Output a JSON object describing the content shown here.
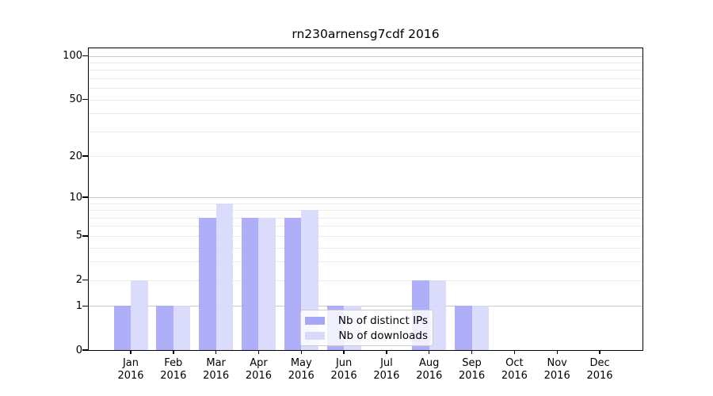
{
  "title": "rn230arnensg7cdf 2016",
  "chart_data": {
    "type": "bar",
    "title": "rn230arnensg7cdf 2016",
    "categories": [
      "Jan 2016",
      "Feb 2016",
      "Mar 2016",
      "Apr 2016",
      "May 2016",
      "Jun 2016",
      "Jul 2016",
      "Aug 2016",
      "Sep 2016",
      "Oct 2016",
      "Nov 2016",
      "Dec 2016"
    ],
    "series": [
      {
        "name": "Nb of distinct IPs",
        "color": "#a7a7f8",
        "values": [
          1,
          1,
          7,
          7,
          7,
          1,
          0,
          2,
          1,
          0,
          0,
          0
        ]
      },
      {
        "name": "Nb of downloads",
        "color": "#d8d9fb",
        "values": [
          2,
          1,
          9,
          7,
          8,
          1,
          0,
          2,
          1,
          0,
          0,
          0
        ]
      }
    ],
    "xlabel": "",
    "ylabel": "",
    "yscale": "log1p",
    "ylim": [
      0,
      113
    ],
    "yticks": [
      0,
      1,
      2,
      5,
      10,
      20,
      50,
      100
    ],
    "major_gridlines": [
      1,
      10,
      100
    ],
    "minor_gridlines": [
      2,
      3,
      4,
      5,
      6,
      7,
      8,
      9,
      20,
      30,
      40,
      50,
      60,
      70,
      80,
      90
    ],
    "grid": true,
    "legend_position": "lower center"
  },
  "colors": {
    "bar_distinct_ips": "#a7a7f8",
    "bar_downloads": "#d8d9fb",
    "grid_major": "#c9c9c9",
    "grid_minor": "#ebebeb",
    "axis": "#000000",
    "text": "#000000",
    "legend_border": "#cccccc",
    "legend_background": "rgba(255,255,255,0.8)"
  }
}
